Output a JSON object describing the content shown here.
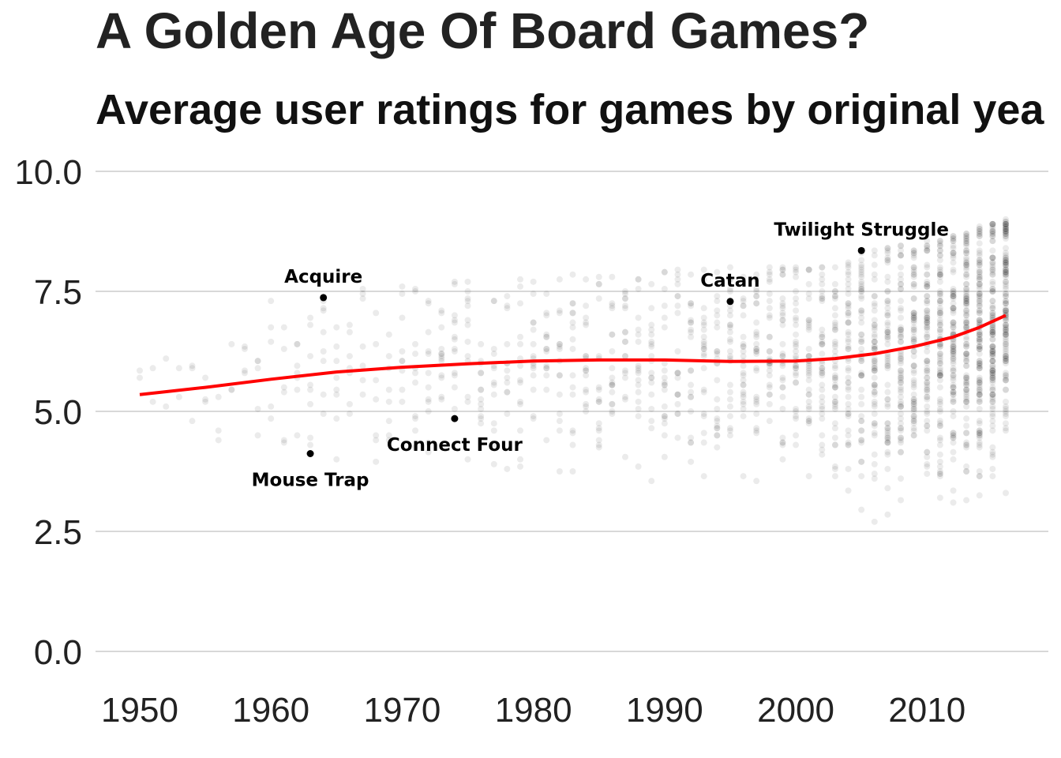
{
  "title": "A Golden Age Of Board Games?",
  "subtitle": "Average user ratings for games by original yea",
  "chart_data": {
    "type": "scatter",
    "title": "A Golden Age Of Board Games?",
    "subtitle": "Average user ratings for games by original yea",
    "xlabel": "",
    "ylabel": "",
    "xlim": [
      1950,
      2016
    ],
    "ylim": [
      0,
      10
    ],
    "x_ticks": [
      1950,
      1960,
      1970,
      1980,
      1990,
      2000,
      2010
    ],
    "y_ticks": [
      "0.0",
      "2.5",
      "5.0",
      "7.5",
      "10.0"
    ],
    "grid": "horizontal",
    "colors": {
      "points": "#000000",
      "trend": "#ff0000",
      "grid": "#cccccc"
    },
    "point_density_by_year": [
      [
        1950,
        3
      ],
      [
        1952,
        3
      ],
      [
        1955,
        5
      ],
      [
        1958,
        6
      ],
      [
        1960,
        9
      ],
      [
        1962,
        12
      ],
      [
        1964,
        15
      ],
      [
        1966,
        12
      ],
      [
        1968,
        12
      ],
      [
        1970,
        15
      ],
      [
        1972,
        20
      ],
      [
        1974,
        22
      ],
      [
        1976,
        22
      ],
      [
        1978,
        22
      ],
      [
        1980,
        25
      ],
      [
        1982,
        25
      ],
      [
        1984,
        28
      ],
      [
        1986,
        30
      ],
      [
        1988,
        30
      ],
      [
        1990,
        33
      ],
      [
        1992,
        35
      ],
      [
        1994,
        40
      ],
      [
        1996,
        45
      ],
      [
        1998,
        50
      ],
      [
        2000,
        55
      ],
      [
        2002,
        65
      ],
      [
        2004,
        80
      ],
      [
        2006,
        95
      ],
      [
        2008,
        110
      ],
      [
        2010,
        130
      ],
      [
        2012,
        160
      ],
      [
        2014,
        200
      ],
      [
        2016,
        220
      ]
    ],
    "rating_spread_by_year": [
      [
        1950,
        4.6,
        6.6
      ],
      [
        1960,
        4.0,
        7.5
      ],
      [
        1970,
        3.8,
        7.6
      ],
      [
        1980,
        3.7,
        7.8
      ],
      [
        1990,
        3.5,
        8.0
      ],
      [
        2000,
        3.0,
        8.0
      ],
      [
        2005,
        2.5,
        8.3
      ],
      [
        2010,
        3.0,
        8.6
      ],
      [
        2016,
        3.2,
        9.0
      ]
    ],
    "trend": {
      "name": "",
      "x": [
        1950,
        1955,
        1960,
        1965,
        1970,
        1975,
        1980,
        1985,
        1990,
        1995,
        2000,
        2003,
        2006,
        2009,
        2012,
        2014,
        2016
      ],
      "y": [
        5.35,
        5.5,
        5.67,
        5.82,
        5.92,
        5.99,
        6.05,
        6.07,
        6.07,
        6.04,
        6.05,
        6.1,
        6.2,
        6.35,
        6.55,
        6.75,
        7.0
      ]
    },
    "annotations": [
      {
        "label": "Acquire",
        "x": 1964,
        "y": 7.37,
        "label_position": "above"
      },
      {
        "label": "Mouse Trap",
        "x": 1963,
        "y": 4.12,
        "label_position": "below"
      },
      {
        "label": "Connect Four",
        "x": 1974,
        "y": 4.85,
        "label_position": "below"
      },
      {
        "label": "Catan",
        "x": 1995,
        "y": 7.29,
        "label_position": "above"
      },
      {
        "label": "Twilight Struggle",
        "x": 2005,
        "y": 8.35,
        "label_position": "above"
      }
    ]
  }
}
